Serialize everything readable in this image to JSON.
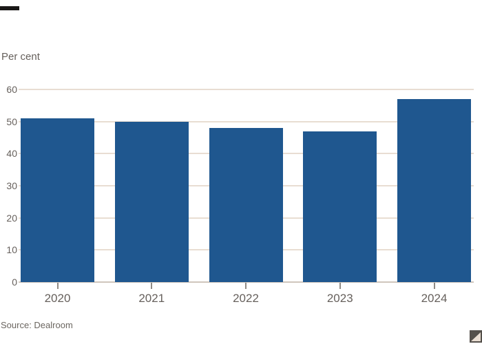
{
  "labels": {
    "unit": "Per cent",
    "source": "Source: Dealroom"
  },
  "colors": {
    "background": "#ffffff",
    "bar": "#1f578f",
    "gridline": "#e8ddd2",
    "baseline": "#cfc5bc",
    "axis_text": "#66605c",
    "tick": "#8f8a84",
    "tag_bar": "#1a1817",
    "corner_square": "#54504b",
    "corner_triangle": "#e9ddd2"
  },
  "icons": {
    "tag_bar": "ft-black-tag-bar",
    "corner": "expand-corner-triangle-icon"
  },
  "chart_data": {
    "type": "bar",
    "categories": [
      "2020",
      "2021",
      "2022",
      "2023",
      "2024"
    ],
    "values": [
      51,
      50,
      48,
      47,
      57
    ],
    "title": "",
    "xlabel": "",
    "ylabel": "Per cent",
    "ylim": [
      0,
      60
    ],
    "yticks": [
      0,
      10,
      20,
      30,
      40,
      50,
      60
    ],
    "grid": "horizontal-behind-bars",
    "legend": "none",
    "source": "Source: Dealroom"
  }
}
